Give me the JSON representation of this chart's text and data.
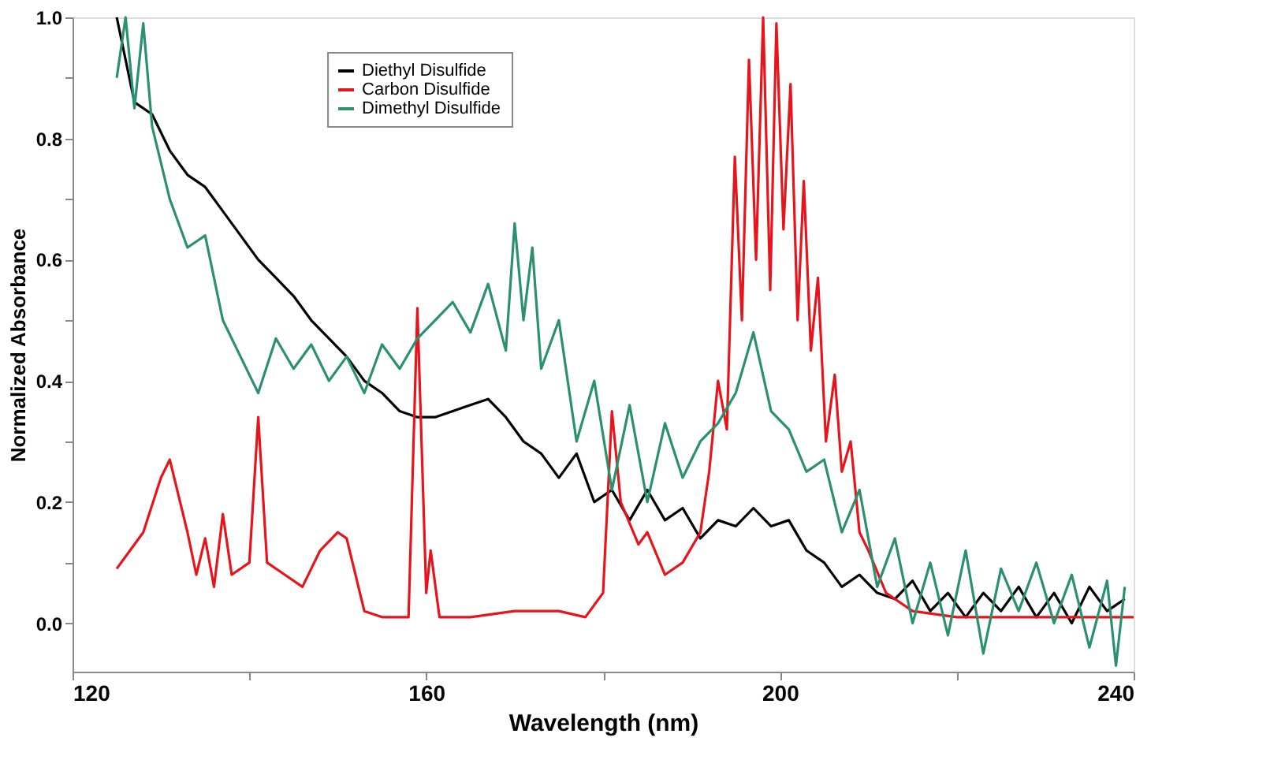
{
  "chart_data": {
    "type": "line",
    "xlabel": "Wavelength (nm)",
    "ylabel": "Normalized Absorbance",
    "xlim": [
      120,
      240
    ],
    "ylim": [
      -0.08,
      1.0
    ],
    "xticks": [
      120,
      {
        "value": 140,
        "label": null
      },
      160,
      {
        "value": 180,
        "label": null
      },
      200,
      {
        "value": 220,
        "label": null
      },
      240
    ],
    "yticks": [
      {
        "value": 0,
        "label": "0.0"
      },
      {
        "value": 0.1,
        "label": null
      },
      0.2,
      {
        "value": 0.3,
        "label": null
      },
      0.4,
      {
        "value": 0.5,
        "label": null
      },
      0.6,
      {
        "value": 0.7,
        "label": null
      },
      0.8,
      {
        "value": 0.9,
        "label": null
      },
      {
        "value": 1.0,
        "label": "1.0"
      }
    ],
    "grid": false,
    "legend": "top",
    "marker": "none",
    "line_style": "solid",
    "series": [
      {
        "name": "Diethyl Disulfide",
        "color": "#000000",
        "x": [
          125,
          127,
          129,
          131,
          133,
          135,
          137,
          139,
          141,
          143,
          145,
          147,
          149,
          151,
          153,
          155,
          157,
          159,
          161,
          163,
          165,
          167,
          169,
          171,
          173,
          175,
          177,
          179,
          181,
          183,
          185,
          187,
          189,
          191,
          193,
          195,
          197,
          199,
          201,
          203,
          205,
          207,
          209,
          211,
          213,
          215,
          217,
          219,
          221,
          223,
          225,
          227,
          229,
          231,
          233,
          235,
          237,
          239
        ],
        "values": [
          1.0,
          0.86,
          0.84,
          0.78,
          0.74,
          0.72,
          0.68,
          0.64,
          0.6,
          0.57,
          0.54,
          0.5,
          0.47,
          0.44,
          0.4,
          0.38,
          0.35,
          0.34,
          0.34,
          0.35,
          0.36,
          0.37,
          0.34,
          0.3,
          0.28,
          0.24,
          0.28,
          0.2,
          0.22,
          0.17,
          0.22,
          0.17,
          0.19,
          0.14,
          0.17,
          0.16,
          0.19,
          0.16,
          0.17,
          0.12,
          0.1,
          0.06,
          0.08,
          0.05,
          0.04,
          0.07,
          0.02,
          0.05,
          0.01,
          0.05,
          0.02,
          0.06,
          0.01,
          0.05,
          0.0,
          0.06,
          0.02,
          0.04
        ]
      },
      {
        "name": "Carbon Disulfide",
        "color": "#e8141c",
        "x": [
          125,
          126,
          128,
          130,
          131,
          133,
          134,
          135,
          136,
          137,
          138,
          140,
          141,
          142,
          144,
          146,
          148,
          150,
          151,
          153,
          155,
          158,
          159,
          160,
          160.5,
          161.5,
          165,
          170,
          175,
          178,
          180,
          181,
          182,
          184,
          185,
          187,
          189,
          191,
          192,
          193,
          194,
          194.9,
          195.7,
          196.5,
          197.3,
          198.1,
          198.9,
          199.6,
          200.4,
          201.2,
          202,
          202.7,
          203.5,
          204.3,
          205.2,
          206.2,
          207,
          208,
          209,
          210,
          212,
          215,
          220,
          230,
          240
        ],
        "values": [
          0.09,
          0.11,
          0.15,
          0.24,
          0.27,
          0.15,
          0.08,
          0.14,
          0.06,
          0.18,
          0.08,
          0.1,
          0.34,
          0.1,
          0.08,
          0.06,
          0.12,
          0.15,
          0.14,
          0.02,
          0.01,
          0.01,
          0.52,
          0.05,
          0.12,
          0.01,
          0.01,
          0.02,
          0.02,
          0.01,
          0.05,
          0.35,
          0.2,
          0.13,
          0.15,
          0.08,
          0.1,
          0.15,
          0.25,
          0.4,
          0.32,
          0.77,
          0.5,
          0.93,
          0.6,
          1.0,
          0.55,
          0.99,
          0.65,
          0.89,
          0.5,
          0.73,
          0.45,
          0.57,
          0.3,
          0.41,
          0.25,
          0.3,
          0.15,
          0.12,
          0.05,
          0.02,
          0.01,
          0.01,
          0.01
        ]
      },
      {
        "name": "Dimethyl Disulfide",
        "color": "#2a9070",
        "x": [
          125,
          126,
          127,
          128,
          129,
          131,
          133,
          135,
          137,
          139,
          141,
          143,
          145,
          147,
          149,
          151,
          153,
          155,
          157,
          159,
          161,
          163,
          165,
          167,
          169,
          170,
          171,
          172,
          173,
          175,
          177,
          179,
          181,
          183,
          185,
          187,
          189,
          191,
          193,
          195,
          197,
          199,
          201,
          203,
          205,
          207,
          209,
          211,
          213,
          215,
          217,
          219,
          221,
          223,
          225,
          227,
          229,
          231,
          233,
          235,
          237,
          238,
          239
        ],
        "values": [
          0.9,
          1.0,
          0.85,
          0.99,
          0.82,
          0.7,
          0.62,
          0.64,
          0.5,
          0.44,
          0.38,
          0.47,
          0.42,
          0.46,
          0.4,
          0.44,
          0.38,
          0.46,
          0.42,
          0.47,
          0.5,
          0.53,
          0.48,
          0.56,
          0.45,
          0.66,
          0.5,
          0.62,
          0.42,
          0.5,
          0.3,
          0.4,
          0.22,
          0.36,
          0.2,
          0.33,
          0.24,
          0.3,
          0.33,
          0.38,
          0.48,
          0.35,
          0.32,
          0.25,
          0.27,
          0.15,
          0.22,
          0.06,
          0.14,
          0.0,
          0.1,
          -0.02,
          0.12,
          -0.05,
          0.09,
          0.02,
          0.1,
          0.0,
          0.08,
          -0.04,
          0.07,
          -0.07,
          0.06
        ]
      }
    ]
  }
}
